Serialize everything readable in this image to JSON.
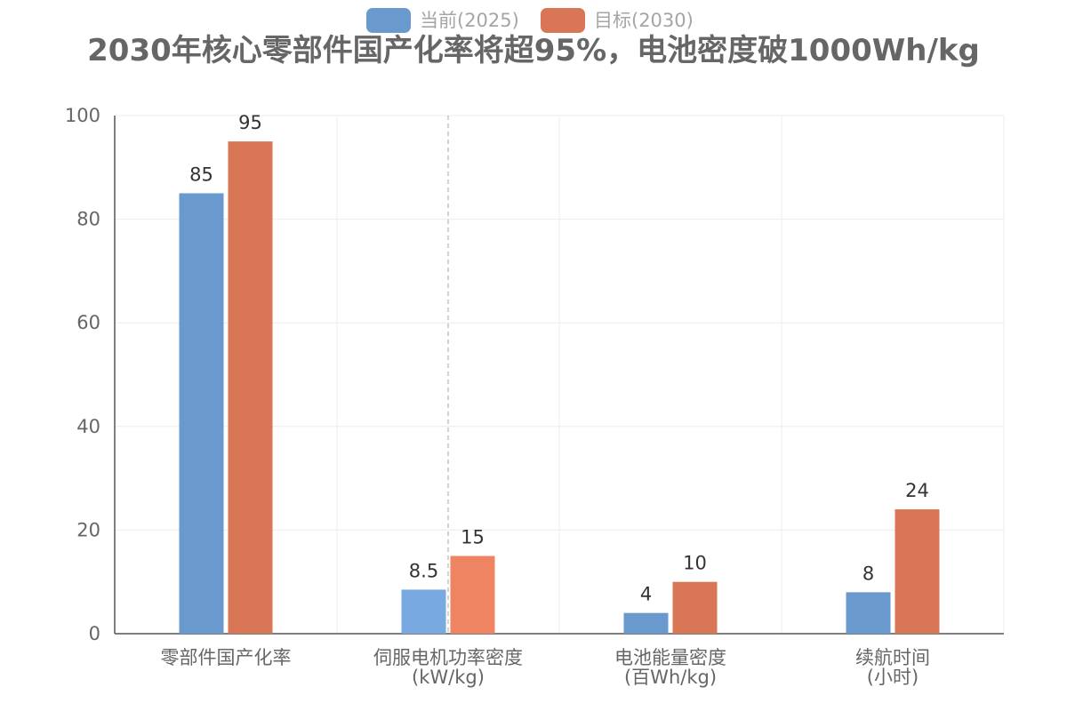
{
  "chart_data": {
    "type": "bar",
    "title": "2030年核心零部件国产化率将超95%，电池密度破1000Wh/kg",
    "categories": [
      [
        "零部件国产化率"
      ],
      [
        "伺服电机功率密度",
        "(kW/kg)"
      ],
      [
        "电池能量密度",
        "(百Wh/kg)"
      ],
      [
        "续航时间",
        "(小时)"
      ]
    ],
    "series": [
      {
        "name": "当前(2025)",
        "values": [
          85,
          8.5,
          4,
          8
        ],
        "color": "#6a9acd"
      },
      {
        "name": "目标(2030)",
        "values": [
          95,
          15,
          10,
          24
        ],
        "color": "#d97655"
      }
    ],
    "ylim": [
      0,
      100
    ],
    "yticks": [
      0,
      20,
      40,
      60,
      80,
      100
    ],
    "grid": true,
    "legend": "top-center",
    "highlight": {
      "category_index": 1,
      "colors": [
        "#78a9e1",
        "#ee8462"
      ]
    }
  }
}
